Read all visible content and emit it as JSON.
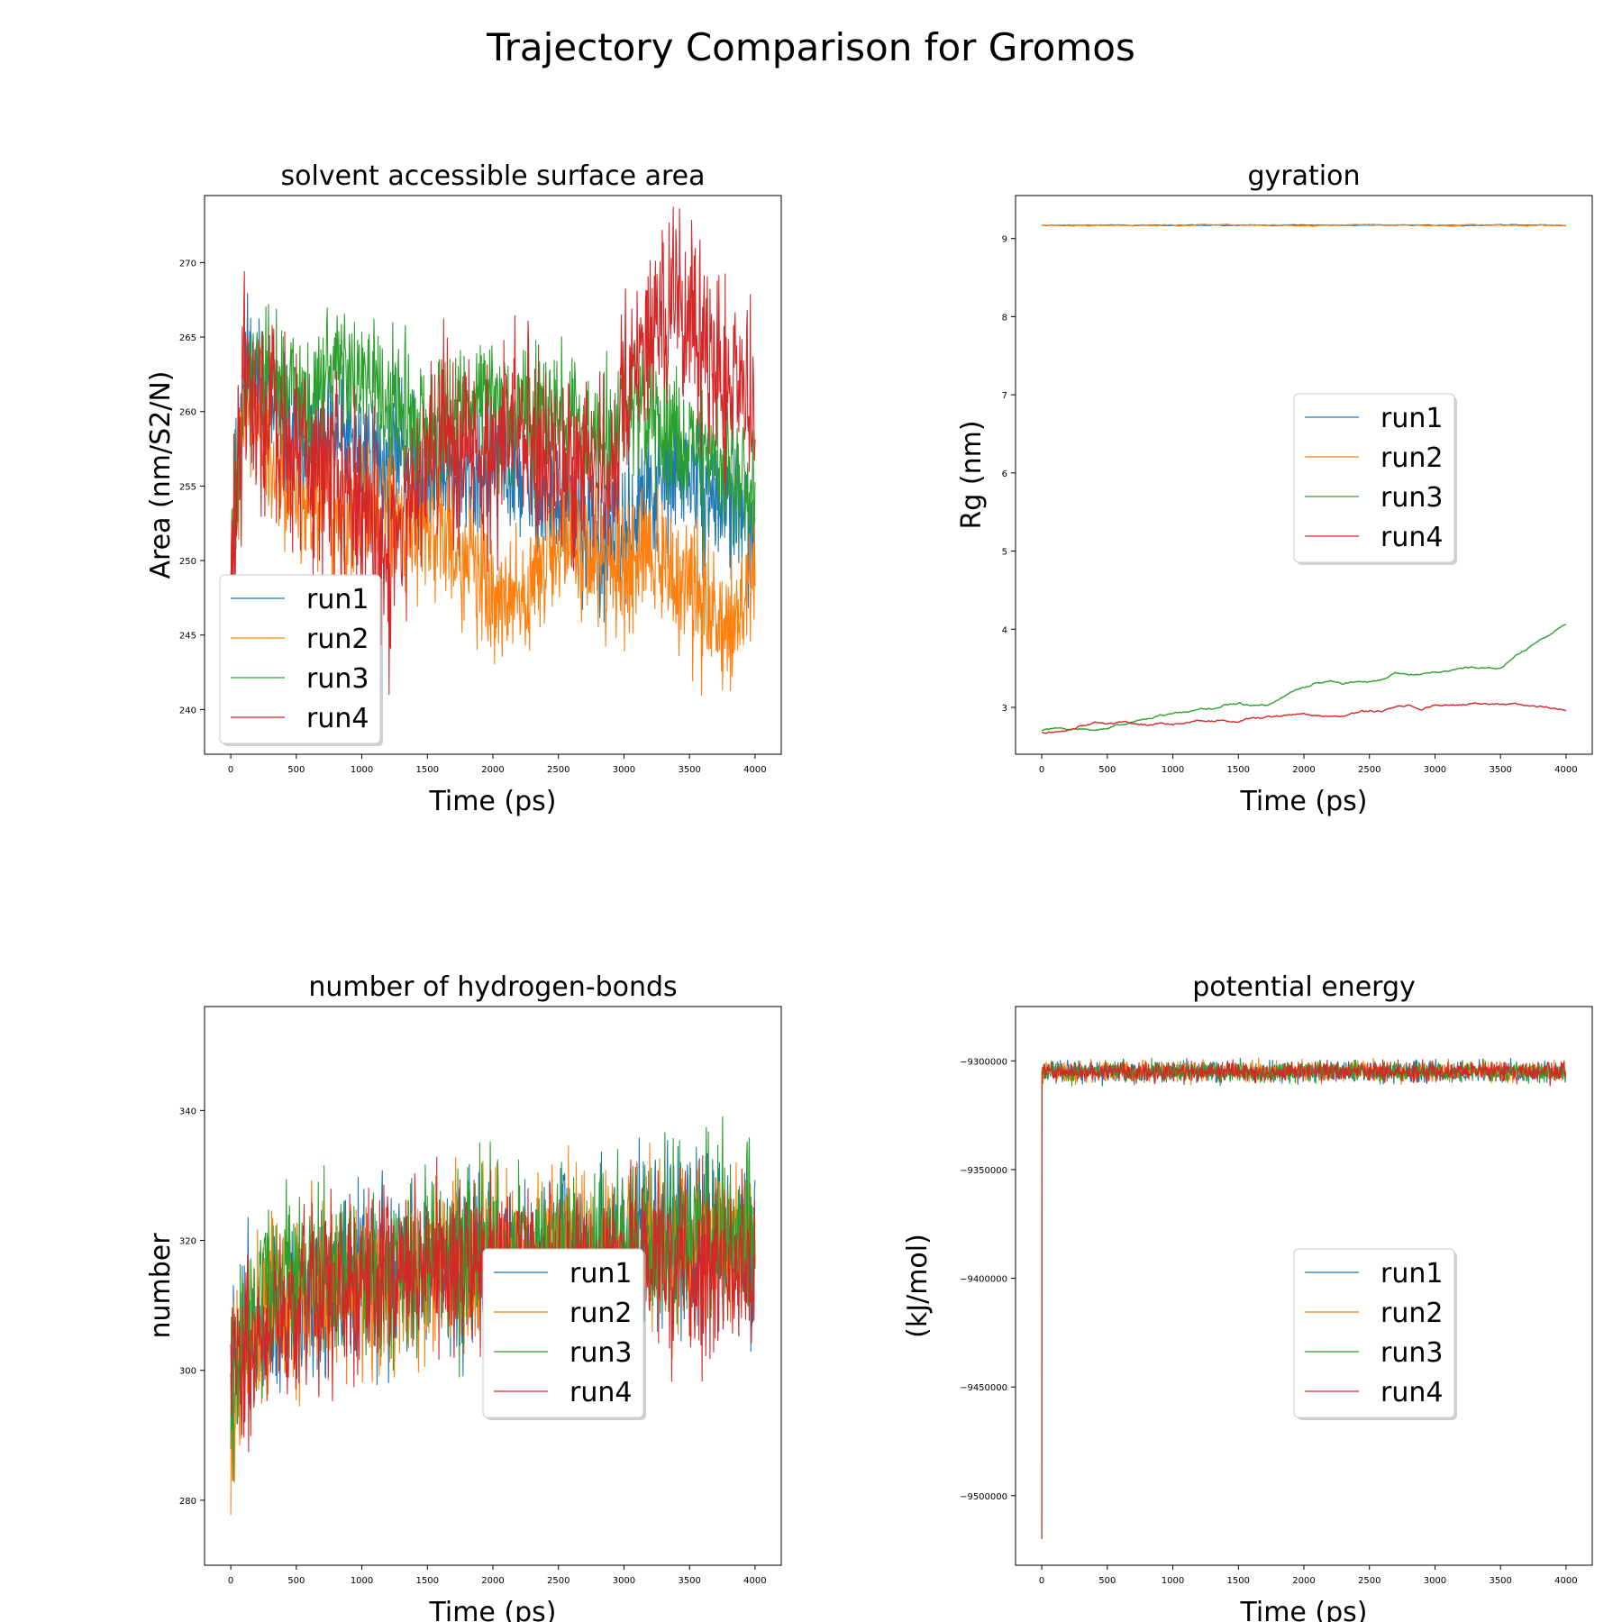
{
  "figure_title": "Trajectory Comparison for Gromos",
  "colors": {
    "run1": "#1f77b4",
    "run2": "#ff7f0e",
    "run3": "#2ca02c",
    "run4": "#d62728"
  },
  "chart_data": [
    {
      "type": "line",
      "title": "solvent accessible surface area",
      "xlabel": "Time (ps)",
      "ylabel": "Area (nm/S2/N)",
      "xlim": [
        -200,
        4200
      ],
      "ylim": [
        237,
        274.5
      ],
      "xticks": [
        0,
        500,
        1000,
        1500,
        2000,
        2500,
        3000,
        3500,
        4000
      ],
      "yticks": [
        240,
        245,
        250,
        255,
        260,
        265,
        270
      ],
      "legend_position": "lower-left",
      "x": [
        0,
        100,
        200,
        300,
        400,
        500,
        600,
        700,
        800,
        900,
        1000,
        1100,
        1200,
        1300,
        1400,
        1500,
        1600,
        1700,
        1800,
        1900,
        2000,
        2100,
        2200,
        2300,
        2400,
        2500,
        2600,
        2700,
        2800,
        2900,
        3000,
        3100,
        3200,
        3300,
        3400,
        3500,
        3600,
        3700,
        3800,
        3900,
        4000
      ],
      "noise": [
        3.5,
        3.5,
        3.5,
        5
      ],
      "series": [
        {
          "name": "run1",
          "values": [
            249,
            264,
            262,
            260,
            259,
            258,
            258,
            257,
            258,
            258,
            257,
            257,
            256,
            258,
            256,
            255,
            256,
            256,
            255,
            256,
            257,
            256,
            256,
            255,
            254,
            253,
            253,
            252,
            251,
            251,
            252,
            253,
            254,
            255,
            256,
            256,
            255,
            254,
            254,
            253,
            251
          ]
        },
        {
          "name": "run2",
          "values": [
            249,
            262,
            260,
            256,
            255,
            254,
            254,
            254,
            253,
            253,
            254,
            253,
            253,
            253,
            252,
            252,
            252,
            251,
            250,
            249,
            248,
            247,
            248,
            249,
            250,
            251,
            251,
            250,
            249,
            250,
            250,
            250,
            251,
            250,
            249,
            248,
            247,
            246,
            246,
            247,
            249
          ]
        },
        {
          "name": "run3",
          "values": [
            249,
            262,
            263,
            262,
            261,
            261,
            260,
            261,
            263,
            263,
            262,
            261,
            260,
            260,
            259,
            259,
            259,
            259,
            260,
            261,
            261,
            260,
            260,
            260,
            260,
            260,
            259,
            258,
            258,
            259,
            260,
            261,
            260,
            259,
            258,
            258,
            257,
            256,
            256,
            255,
            254
          ]
        },
        {
          "name": "run4",
          "values": [
            249,
            262,
            261,
            260,
            259,
            258,
            257,
            256,
            256,
            255,
            254,
            252,
            250,
            252,
            255,
            257,
            258,
            258,
            258,
            257,
            258,
            259,
            259,
            258,
            257,
            256,
            256,
            256,
            256,
            256,
            261,
            264,
            265,
            265,
            267,
            266,
            264,
            263,
            263,
            262,
            260
          ]
        }
      ]
    },
    {
      "type": "line",
      "title": "gyration",
      "xlabel": "Time (ps)",
      "ylabel": "Rg (nm)",
      "xlim": [
        -200,
        4200
      ],
      "ylim": [
        2.4,
        9.55
      ],
      "xticks": [
        0,
        500,
        1000,
        1500,
        2000,
        2500,
        3000,
        3500,
        4000
      ],
      "yticks": [
        3,
        4,
        5,
        6,
        7,
        8,
        9
      ],
      "legend_position": "center-right",
      "x": [
        0,
        100,
        200,
        300,
        400,
        500,
        600,
        700,
        800,
        900,
        1000,
        1100,
        1200,
        1300,
        1400,
        1500,
        1600,
        1700,
        1800,
        1900,
        2000,
        2100,
        2200,
        2300,
        2400,
        2500,
        2600,
        2700,
        2800,
        2900,
        3000,
        3100,
        3200,
        3300,
        3400,
        3500,
        3600,
        3700,
        3800,
        3900,
        4000
      ],
      "noise": [
        0.006,
        0.008,
        0.015,
        0.015
      ],
      "series": [
        {
          "name": "run1",
          "values": [
            9.17,
            9.17,
            9.17,
            9.17,
            9.17,
            9.17,
            9.17,
            9.17,
            9.17,
            9.17,
            9.17,
            9.17,
            9.17,
            9.17,
            9.17,
            9.17,
            9.17,
            9.17,
            9.17,
            9.17,
            9.17,
            9.17,
            9.17,
            9.17,
            9.17,
            9.17,
            9.17,
            9.17,
            9.17,
            9.17,
            9.17,
            9.17,
            9.17,
            9.17,
            9.17,
            9.17,
            9.17,
            9.17,
            9.17,
            9.17,
            9.17
          ]
        },
        {
          "name": "run2",
          "values": [
            9.17,
            9.17,
            9.17,
            9.17,
            9.17,
            9.17,
            9.17,
            9.17,
            9.17,
            9.17,
            9.17,
            9.17,
            9.17,
            9.17,
            9.17,
            9.17,
            9.17,
            9.17,
            9.17,
            9.17,
            9.17,
            9.17,
            9.17,
            9.17,
            9.18,
            9.18,
            9.17,
            9.17,
            9.17,
            9.17,
            9.17,
            9.17,
            9.17,
            9.17,
            9.17,
            9.17,
            9.17,
            9.17,
            9.17,
            9.17,
            9.17
          ]
        },
        {
          "name": "run3",
          "values": [
            2.7,
            2.73,
            2.72,
            2.72,
            2.7,
            2.74,
            2.78,
            2.8,
            2.85,
            2.9,
            2.92,
            2.93,
            2.97,
            2.98,
            3.03,
            3.05,
            3.02,
            3.02,
            3.08,
            3.18,
            3.25,
            3.32,
            3.35,
            3.3,
            3.32,
            3.33,
            3.35,
            3.44,
            3.42,
            3.43,
            3.45,
            3.47,
            3.5,
            3.52,
            3.5,
            3.48,
            3.65,
            3.75,
            3.85,
            3.95,
            4.06
          ]
        },
        {
          "name": "run4",
          "values": [
            2.68,
            2.69,
            2.7,
            2.76,
            2.8,
            2.78,
            2.8,
            2.79,
            2.78,
            2.8,
            2.78,
            2.81,
            2.84,
            2.83,
            2.84,
            2.82,
            2.86,
            2.87,
            2.89,
            2.9,
            2.92,
            2.89,
            2.88,
            2.9,
            2.93,
            2.96,
            2.95,
            3.0,
            3.02,
            2.98,
            3.03,
            3.04,
            3.04,
            3.05,
            3.04,
            3.03,
            3.03,
            3.02,
            3.0,
            2.99,
            2.97
          ]
        }
      ]
    },
    {
      "type": "line",
      "title": "number of hydrogen-bonds",
      "xlabel": "Time (ps)",
      "ylabel": "number",
      "xlim": [
        -200,
        4200
      ],
      "ylim": [
        270,
        356
      ],
      "xticks": [
        0,
        500,
        1000,
        1500,
        2000,
        2500,
        3000,
        3500,
        4000
      ],
      "yticks": [
        280,
        300,
        320,
        340
      ],
      "legend_position": "lower-right",
      "x": [
        0,
        100,
        200,
        300,
        400,
        500,
        600,
        700,
        800,
        900,
        1000,
        1100,
        1200,
        1300,
        1400,
        1500,
        1600,
        1700,
        1800,
        1900,
        2000,
        2100,
        2200,
        2300,
        2400,
        2500,
        2600,
        2700,
        2800,
        2900,
        3000,
        3100,
        3200,
        3300,
        3400,
        3500,
        3600,
        3700,
        3800,
        3900,
        4000
      ],
      "noise": [
        10,
        10,
        10,
        10
      ],
      "series": [
        {
          "name": "run1",
          "values": [
            300,
            306,
            308,
            309,
            310,
            311,
            312,
            312,
            313,
            313,
            313,
            314,
            314,
            315,
            315,
            316,
            316,
            316,
            316,
            317,
            317,
            317,
            317,
            317,
            318,
            318,
            318,
            318,
            318,
            318,
            319,
            319,
            319,
            319,
            319,
            320,
            320,
            320,
            320,
            320,
            320
          ]
        },
        {
          "name": "run2",
          "values": [
            295,
            304,
            307,
            309,
            310,
            311,
            312,
            312,
            312,
            313,
            313,
            313,
            314,
            314,
            315,
            315,
            315,
            316,
            316,
            316,
            316,
            317,
            317,
            317,
            317,
            317,
            318,
            318,
            318,
            318,
            319,
            319,
            319,
            319,
            319,
            320,
            320,
            320,
            320,
            320,
            320
          ]
        },
        {
          "name": "run3",
          "values": [
            296,
            305,
            309,
            311,
            313,
            314,
            315,
            315,
            315,
            315,
            315,
            315,
            316,
            316,
            316,
            317,
            317,
            317,
            317,
            318,
            318,
            318,
            318,
            318,
            319,
            319,
            319,
            319,
            319,
            319,
            320,
            320,
            320,
            320,
            320,
            321,
            321,
            321,
            321,
            321,
            321
          ]
        },
        {
          "name": "run4",
          "values": [
            303,
            304,
            305,
            307,
            308,
            310,
            311,
            312,
            313,
            314,
            315,
            315,
            316,
            316,
            316,
            316,
            316,
            316,
            316,
            316,
            316,
            316,
            316,
            316,
            316,
            316,
            316,
            316,
            316,
            316,
            316,
            316,
            316,
            316,
            316,
            316,
            316,
            316,
            316,
            316,
            316
          ]
        }
      ]
    },
    {
      "type": "line",
      "title": "potential energy",
      "xlabel": "Time (ps)",
      "ylabel": "(kJ/mol)",
      "xlim": [
        -200,
        4200
      ],
      "ylim": [
        -9532000,
        -9275000
      ],
      "xticks": [
        0,
        500,
        1000,
        1500,
        2000,
        2500,
        3000,
        3500,
        4000
      ],
      "yticks": [
        -9500000,
        -9450000,
        -9400000,
        -9350000,
        -9300000
      ],
      "legend_position": "lower-right",
      "x": [
        0,
        2,
        100,
        200,
        300,
        400,
        500,
        600,
        700,
        800,
        900,
        1000,
        1100,
        1200,
        1300,
        1400,
        1500,
        1600,
        1700,
        1800,
        1900,
        2000,
        2100,
        2200,
        2300,
        2400,
        2500,
        2600,
        2700,
        2800,
        2900,
        3000,
        3100,
        3200,
        3300,
        3400,
        3500,
        3600,
        3700,
        3800,
        3900,
        4000
      ],
      "noise": [
        3500,
        3500,
        3500,
        3500
      ],
      "series": [
        {
          "name": "run1",
          "values": [
            -9520000,
            -9305000,
            -9305000,
            -9305000,
            -9305000,
            -9305000,
            -9305000,
            -9305000,
            -9305000,
            -9305000,
            -9305000,
            -9305000,
            -9305000,
            -9305000,
            -9305000,
            -9305000,
            -9305000,
            -9305000,
            -9305000,
            -9305000,
            -9305000,
            -9305000,
            -9305000,
            -9305000,
            -9305000,
            -9305000,
            -9305000,
            -9305000,
            -9305000,
            -9305000,
            -9305000,
            -9305000,
            -9305000,
            -9305000,
            -9305000,
            -9305000,
            -9305000,
            -9305000,
            -9305000,
            -9305000,
            -9305000,
            -9305000
          ]
        },
        {
          "name": "run2",
          "values": [
            -9520000,
            -9305000,
            -9305000,
            -9305000,
            -9305000,
            -9305000,
            -9305000,
            -9305000,
            -9305000,
            -9305000,
            -9305000,
            -9305000,
            -9305000,
            -9305000,
            -9305000,
            -9305000,
            -9305000,
            -9305000,
            -9305000,
            -9305000,
            -9305000,
            -9305000,
            -9305000,
            -9305000,
            -9305000,
            -9305000,
            -9305000,
            -9305000,
            -9305000,
            -9305000,
            -9305000,
            -9305000,
            -9305000,
            -9305000,
            -9305000,
            -9305000,
            -9305000,
            -9305000,
            -9305000,
            -9305000,
            -9305000,
            -9305000
          ]
        },
        {
          "name": "run3",
          "values": [
            -9520000,
            -9305000,
            -9305000,
            -9305000,
            -9305000,
            -9305000,
            -9305000,
            -9305000,
            -9305000,
            -9305000,
            -9305000,
            -9305000,
            -9305000,
            -9305000,
            -9305000,
            -9305000,
            -9305000,
            -9305000,
            -9305000,
            -9305000,
            -9305000,
            -9305000,
            -9305000,
            -9305000,
            -9305000,
            -9305000,
            -9305000,
            -9305000,
            -9305000,
            -9305000,
            -9305000,
            -9305000,
            -9305000,
            -9305000,
            -9305000,
            -9305000,
            -9305000,
            -9305000,
            -9305000,
            -9305000,
            -9305000,
            -9305000
          ]
        },
        {
          "name": "run4",
          "values": [
            -9520000,
            -9305000,
            -9305000,
            -9305000,
            -9305000,
            -9305000,
            -9305000,
            -9305000,
            -9305000,
            -9305000,
            -9305000,
            -9305000,
            -9305000,
            -9305000,
            -9305000,
            -9305000,
            -9305000,
            -9305000,
            -9305000,
            -9305000,
            -9305000,
            -9305000,
            -9305000,
            -9305000,
            -9305000,
            -9305000,
            -9305000,
            -9305000,
            -9305000,
            -9305000,
            -9305000,
            -9305000,
            -9305000,
            -9305000,
            -9305000,
            -9305000,
            -9305000,
            -9305000,
            -9305000,
            -9305000,
            -9305000,
            -9305000
          ]
        }
      ]
    }
  ]
}
